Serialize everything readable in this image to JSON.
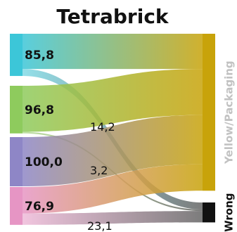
{
  "title": "Tetrabrick",
  "sources": [
    {
      "value": "85,8",
      "color": "#3cc6d8"
    },
    {
      "value": "96,8",
      "color": "#8ecb5d"
    },
    {
      "value": "100,0",
      "color": "#8e86c6"
    },
    {
      "value": "76,9",
      "color": "#e695c4"
    }
  ],
  "targets": [
    {
      "label": "Yellow/Packaging",
      "color": "#c8a30a",
      "label_color": "#c2c2c2"
    },
    {
      "label": "Wrong",
      "color": "#111111",
      "label_color": "#111111"
    }
  ],
  "flows": [
    {
      "source": 0,
      "target": 0,
      "value": 71.6
    },
    {
      "source": 0,
      "target": 1,
      "value": 14.2,
      "label": "14,2"
    },
    {
      "source": 1,
      "target": 0,
      "value": 93.6
    },
    {
      "source": 1,
      "target": 1,
      "value": 3.2,
      "label": "3,2"
    },
    {
      "source": 2,
      "target": 0,
      "value": 100.0
    },
    {
      "source": 3,
      "target": 0,
      "value": 53.8
    },
    {
      "source": 3,
      "target": 1,
      "value": 23.1,
      "label": "23,1"
    }
  ]
}
